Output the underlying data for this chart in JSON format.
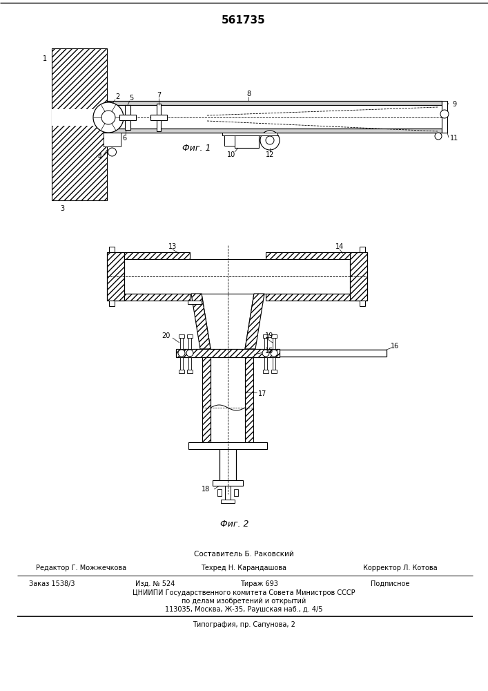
{
  "title_number": "561735",
  "fig1_caption": "Фиг. 1",
  "fig2_caption": "Фиг. 2",
  "footer_composer": "Составитель Б. Раковский",
  "footer_editor": "Редактор Г. Можжечкова",
  "footer_tech": "Техред Н. Карандашова",
  "footer_corrector": "Корректор Л. Котова",
  "footer_order": "Заказ 1538/3",
  "footer_pub": "Изд. № 524",
  "footer_print": "Тираж 693",
  "footer_sign": "Подписное",
  "footer_org": "ЦНИИПИ Государственного комитета Совета Министров СССР",
  "footer_org2": "по делам изобретений и открытий",
  "footer_addr": "113035, Москва, Ж-35, Раушская наб., д. 4/5",
  "footer_print2": "Типография, пр. Сапунова, 2",
  "bg_color": "#ffffff",
  "line_color": "#000000"
}
